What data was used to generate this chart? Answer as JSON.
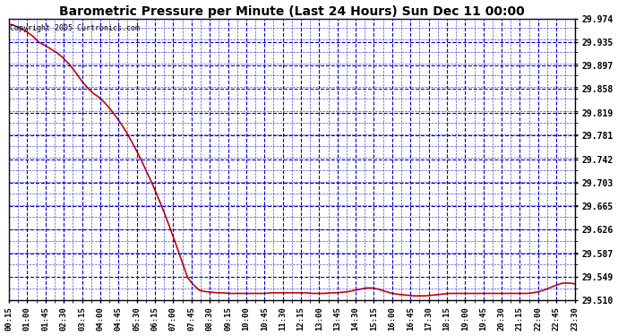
{
  "title": "Barometric Pressure per Minute (Last 24 Hours) Sun Dec 11 00:00",
  "copyright": "Copyright 2005 Curtronics.com",
  "background_color": "#ffffff",
  "line_color": "#cc0000",
  "grid_color": "#0000cc",
  "ymin": 29.51,
  "ymax": 29.974,
  "yticks": [
    29.51,
    29.549,
    29.587,
    29.626,
    29.665,
    29.703,
    29.742,
    29.781,
    29.819,
    29.858,
    29.897,
    29.935,
    29.974
  ],
  "xtick_labels": [
    "00:15",
    "01:00",
    "01:45",
    "02:30",
    "03:15",
    "04:00",
    "04:45",
    "05:30",
    "06:15",
    "07:00",
    "07:45",
    "08:30",
    "09:15",
    "10:00",
    "10:45",
    "11:30",
    "12:15",
    "13:00",
    "13:45",
    "14:30",
    "15:15",
    "16:00",
    "16:45",
    "17:30",
    "18:15",
    "19:00",
    "19:45",
    "20:30",
    "21:15",
    "22:00",
    "22:45",
    "23:30"
  ],
  "pressure_data": [
    29.965,
    29.962,
    29.958,
    29.952,
    29.945,
    29.935,
    29.93,
    29.924,
    29.918,
    29.91,
    29.9,
    29.888,
    29.874,
    29.862,
    29.852,
    29.845,
    29.836,
    29.825,
    29.812,
    29.798,
    29.782,
    29.764,
    29.745,
    29.724,
    29.703,
    29.68,
    29.656,
    29.63,
    29.603,
    29.575,
    29.547,
    29.535,
    29.526,
    29.524,
    29.523,
    29.522,
    29.522,
    29.521,
    29.521,
    29.521,
    29.521,
    29.521,
    29.521,
    29.521,
    29.522,
    29.522,
    29.522,
    29.522,
    29.522,
    29.522,
    29.522,
    29.521,
    29.521,
    29.521,
    29.522,
    29.522,
    29.523,
    29.524,
    29.526,
    29.528,
    29.53,
    29.53,
    29.528,
    29.525,
    29.522,
    29.52,
    29.519,
    29.518,
    29.517,
    29.517,
    29.517,
    29.518,
    29.519,
    29.52,
    29.521,
    29.521,
    29.521,
    29.521,
    29.521,
    29.521,
    29.521,
    29.521,
    29.521,
    29.521,
    29.521,
    29.521,
    29.521,
    29.521,
    29.522,
    29.524,
    29.527,
    29.531,
    29.535,
    29.538,
    29.538,
    29.537
  ]
}
